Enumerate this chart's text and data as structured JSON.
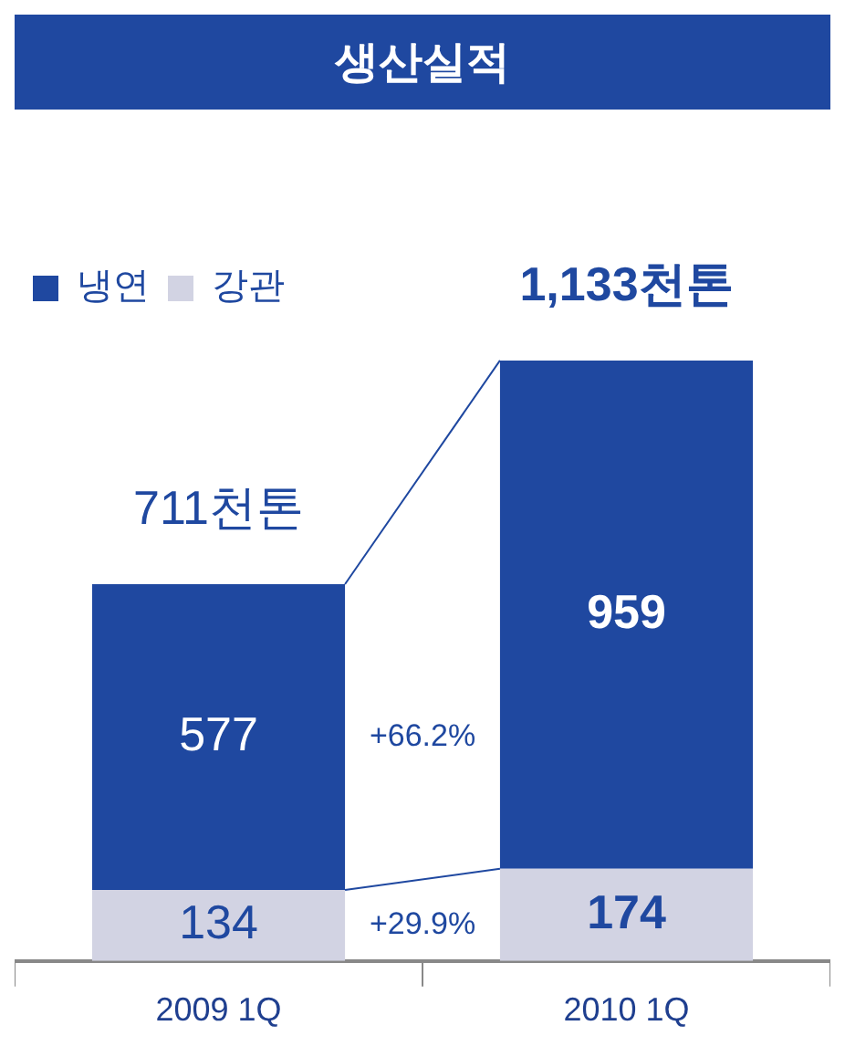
{
  "chart_data": {
    "type": "bar",
    "title": "생산실적",
    "categories": [
      "2009 1Q",
      "2010 1Q"
    ],
    "stacked": true,
    "series": [
      {
        "name": "강관",
        "color": "#d2d3e3",
        "values": [
          134,
          174
        ]
      },
      {
        "name": "냉연",
        "color": "#1f48a0",
        "values": [
          577,
          959
        ]
      }
    ],
    "data_labels": true,
    "totals": [
      "711천톤",
      "1,133천톤"
    ],
    "annotations": [
      "+29.9%",
      "+66.2%"
    ],
    "legend": "top left",
    "tick_labels": "x"
  }
}
